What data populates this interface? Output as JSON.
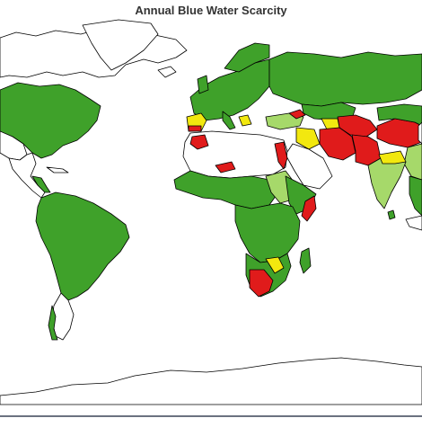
{
  "title": "Annual Blue Water Scarcity",
  "colors": {
    "low": "#3fa12a",
    "moderate": "#a6d96a",
    "significant": "#f2e80f",
    "severe": "#e01b1b",
    "outline": "#000000",
    "no_data": "#ffffff"
  }
}
